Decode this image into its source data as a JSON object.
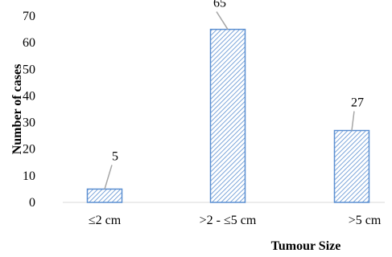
{
  "chart_data": {
    "type": "bar",
    "title": "",
    "xlabel": "Tumour Size",
    "ylabel": "Number of cases",
    "categories": [
      "≤2 cm",
      ">2 - ≤5 cm",
      ">5 cm"
    ],
    "values": [
      5,
      65,
      27
    ],
    "ylim": [
      0,
      70
    ],
    "yticks": [
      "0",
      "10",
      "20",
      "30",
      "40",
      "50",
      "60",
      "70"
    ],
    "data_labels": [
      "5",
      "65",
      "27"
    ],
    "grid": false,
    "legend": "none",
    "bar_fill_pattern": "diagonal-hatch",
    "colors": {
      "bar_border": "#5b8fd1",
      "bar_hatch": "#5b8fd1",
      "bar_background": "#ffffff",
      "leader_line": "#a6a6a6",
      "axis": "#d9d9d9"
    }
  }
}
